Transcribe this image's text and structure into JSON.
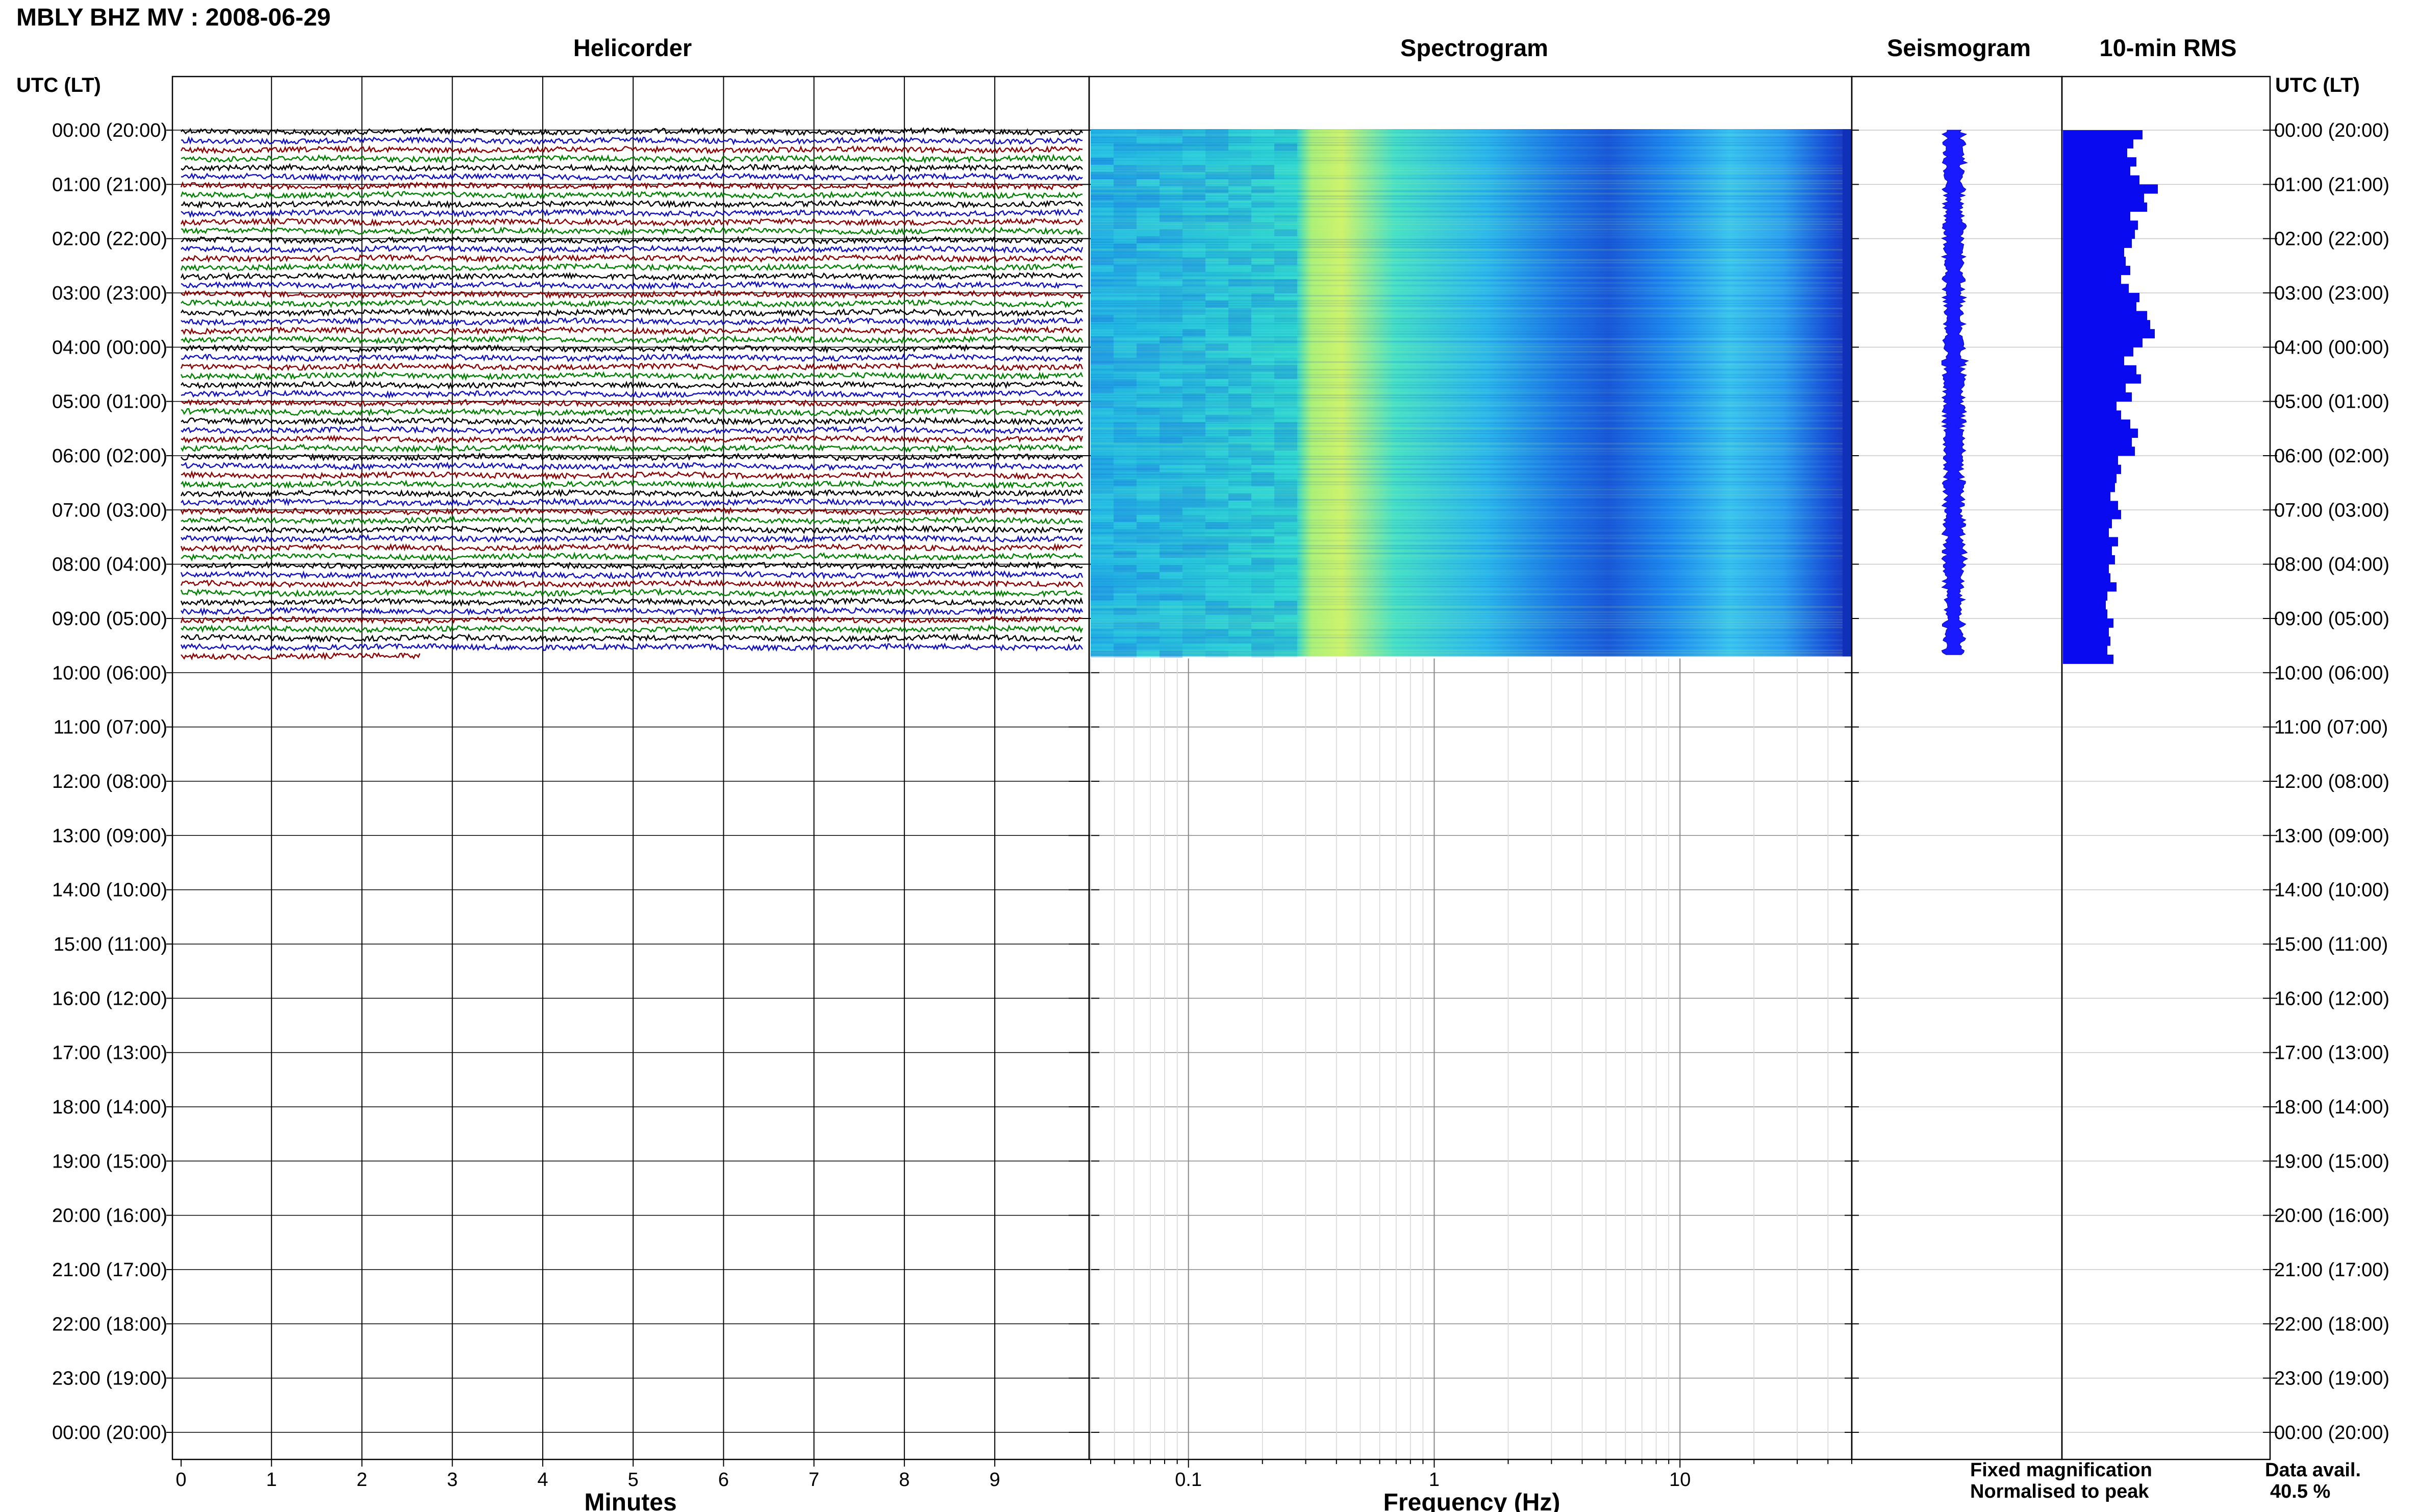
{
  "page_title": "MBLY BHZ MV : 2008-06-29",
  "panels": {
    "helicorder": "Helicorder",
    "spectrogram": "Spectrogram",
    "seismogram": "Seismogram",
    "rms": "10-min RMS"
  },
  "left_axis_header": "UTC (LT)",
  "right_axis_header": "UTC (LT)",
  "time_labels": [
    "00:00 (20:00)",
    "01:00 (21:00)",
    "02:00 (22:00)",
    "03:00 (23:00)",
    "04:00 (00:00)",
    "05:00 (01:00)",
    "06:00 (02:00)",
    "07:00 (03:00)",
    "08:00 (04:00)",
    "09:00 (05:00)",
    "10:00 (06:00)",
    "11:00 (07:00)",
    "12:00 (08:00)",
    "13:00 (09:00)",
    "14:00 (10:00)",
    "15:00 (11:00)",
    "16:00 (12:00)",
    "17:00 (13:00)",
    "18:00 (14:00)",
    "19:00 (15:00)",
    "20:00 (16:00)",
    "21:00 (17:00)",
    "22:00 (18:00)",
    "23:00 (19:00)",
    "00:00 (20:00)"
  ],
  "legend": {
    "fixed": "Fixed magnification",
    "normalised": "Normalised to peak",
    "fixed_color": "#1010e0",
    "normalised_color": "#e01010"
  },
  "data_avail": {
    "label": "Data avail.",
    "value": "40.5 %"
  },
  "chart_data": [
    {
      "type": "line",
      "name": "helicorder",
      "title": "Helicorder",
      "xlabel": "Minutes",
      "xticks": [
        "0",
        "1",
        "2",
        "3",
        "4",
        "5",
        "6",
        "7",
        "8",
        "9"
      ],
      "xlim": [
        0,
        10
      ],
      "y_range_hours": [
        0,
        24
      ],
      "data_end_hours": 9.77,
      "trace_minutes": 10,
      "colors": [
        "#000000",
        "#1010c0",
        "#8b0000",
        "#008000"
      ]
    },
    {
      "type": "heatmap",
      "name": "spectrogram",
      "title": "Spectrogram",
      "xlabel": "Frequency (Hz)",
      "xticks": [
        "0.1",
        "1",
        "10"
      ],
      "xlim": [
        0.04,
        50
      ],
      "x_scale": "log",
      "y_range_hours": [
        0,
        24
      ],
      "data_end_hours": 9.7
    },
    {
      "type": "area",
      "name": "seismogram",
      "title": "Seismogram",
      "y_range_hours": [
        0,
        24
      ],
      "data_end_hours": 9.7,
      "color": "#1a1aff"
    },
    {
      "type": "bar",
      "name": "rms",
      "title": "10-min RMS",
      "y_range_hours": [
        0,
        24
      ],
      "color": "#0a0af0",
      "values": [
        0.52,
        0.46,
        0.42,
        0.48,
        0.44,
        0.5,
        0.62,
        0.53,
        0.55,
        0.44,
        0.49,
        0.47,
        0.45,
        0.4,
        0.41,
        0.44,
        0.38,
        0.43,
        0.5,
        0.48,
        0.55,
        0.57,
        0.6,
        0.52,
        0.46,
        0.4,
        0.48,
        0.51,
        0.41,
        0.45,
        0.35,
        0.38,
        0.44,
        0.49,
        0.45,
        0.47,
        0.36,
        0.38,
        0.35,
        0.34,
        0.31,
        0.36,
        0.38,
        0.32,
        0.3,
        0.36,
        0.32,
        0.34,
        0.3,
        0.31,
        0.35,
        0.29,
        0.28,
        0.29,
        0.33,
        0.3,
        0.31,
        0.29,
        0.33
      ]
    }
  ]
}
